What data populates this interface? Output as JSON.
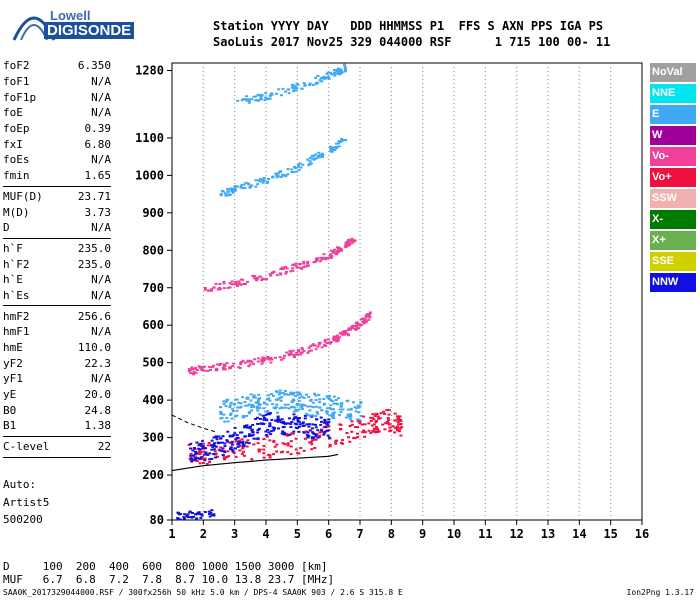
{
  "logo": {
    "line1": "Lowell",
    "line2": "DIGISONDE"
  },
  "header": {
    "line1": "Station YYYY DAY   DDD HHMMSS P1  FFS S AXN PPS IGA PS",
    "line2": "SaoLuis 2017 Nov25 329 044000 RSF      1 715 100 00- 11"
  },
  "params_group1": [
    {
      "name": "foF2",
      "value": "6.350"
    },
    {
      "name": "foF1",
      "value": "N/A"
    },
    {
      "name": "foF1p",
      "value": "N/A"
    },
    {
      "name": "foE",
      "value": "N/A"
    },
    {
      "name": "foEp",
      "value": "0.39"
    },
    {
      "name": "fxI",
      "value": "6.80"
    },
    {
      "name": "foEs",
      "value": "N/A"
    },
    {
      "name": "fmin",
      "value": "1.65"
    }
  ],
  "params_group2": [
    {
      "name": "MUF(D)",
      "value": "23.71"
    },
    {
      "name": "M(D)",
      "value": "3.73"
    },
    {
      "name": "D",
      "value": "N/A"
    }
  ],
  "params_group3": [
    {
      "name": "h`F",
      "value": "235.0"
    },
    {
      "name": "h`F2",
      "value": "235.0"
    },
    {
      "name": "h`E",
      "value": "N/A"
    },
    {
      "name": "h`Es",
      "value": "N/A"
    }
  ],
  "params_group4": [
    {
      "name": "hmF2",
      "value": "256.6"
    },
    {
      "name": "hmF1",
      "value": "N/A"
    },
    {
      "name": "hmE",
      "value": "110.0"
    },
    {
      "name": "yF2",
      "value": "22.3"
    },
    {
      "name": "yF1",
      "value": "N/A"
    },
    {
      "name": "yE",
      "value": "20.0"
    },
    {
      "name": "B0",
      "value": "24.8"
    },
    {
      "name": "B1",
      "value": "1.38"
    }
  ],
  "clevel": {
    "name": "C-level",
    "value": "22"
  },
  "auto": {
    "label": "Auto:",
    "artist": "Artist5",
    "version": "500200"
  },
  "dmuf": {
    "line1": "D     100  200  400  600  800 1000 1500 3000 [km]",
    "line2": "MUF   6.7  6.8  7.2  7.8  8.7 10.0 13.8 23.7 [MHz]"
  },
  "footer": {
    "file": "SAA0K_2017329044000.RSF / 300fx256h 50 kHz 5.0 km / DPS-4 SAA0K 903 / 2.6 S 315.8 E",
    "version": "Ion2Png 1.3.17"
  },
  "legend": [
    {
      "label": "NoVal",
      "color": "#a0a0a0"
    },
    {
      "label": "NNE",
      "color": "#00e5f0"
    },
    {
      "label": "E",
      "color": "#3fa9f5"
    },
    {
      "label": "W",
      "color": "#a0009a"
    },
    {
      "label": "Vo-",
      "color": "#f0409a"
    },
    {
      "label": "Vo+",
      "color": "#f01040"
    },
    {
      "label": "SSW",
      "color": "#f0b0b0"
    },
    {
      "label": "X-",
      "color": "#007a00"
    },
    {
      "label": "X+",
      "color": "#6aaf50"
    },
    {
      "label": "SSE",
      "color": "#d0d000"
    },
    {
      "label": "NNW",
      "color": "#1010e0"
    }
  ],
  "chart_data": {
    "type": "scatter",
    "title": "",
    "xlabel": "",
    "ylabel": "",
    "xlim": [
      1,
      16
    ],
    "ylim": [
      80,
      1300
    ],
    "x_ticks": [
      1,
      2,
      3,
      4,
      5,
      6,
      7,
      8,
      9,
      10,
      11,
      12,
      13,
      14,
      15,
      16
    ],
    "y_ticks": [
      80,
      200,
      300,
      400,
      500,
      600,
      700,
      800,
      900,
      1000,
      1100,
      1280
    ],
    "grid": "vertical dotted at integer frequencies",
    "traces": [
      {
        "name": "F trace low",
        "color": "#f01040",
        "x": [
          1.5,
          2,
          3,
          4,
          5,
          6,
          7,
          7.5,
          8,
          8.3
        ],
        "y": [
          258,
          262,
          268,
          278,
          290,
          305,
          330,
          345,
          350,
          325
        ]
      },
      {
        "name": "NNW cluster",
        "color": "#1010e0",
        "x": [
          1.5,
          2,
          2.5,
          3,
          3.5,
          4,
          4.5,
          5,
          5.5,
          6
        ],
        "y": [
          265,
          270,
          280,
          300,
          320,
          340,
          340,
          335,
          330,
          330
        ]
      },
      {
        "name": "E cluster",
        "color": "#3fa9f5",
        "x": [
          2.5,
          3,
          3.5,
          4,
          4.5,
          5,
          5.5,
          6,
          6.5,
          7
        ],
        "y": [
          370,
          380,
          390,
          395,
          400,
          395,
          390,
          385,
          380,
          370
        ]
      },
      {
        "name": "2nd hop",
        "color": "#f0409a",
        "x": [
          1.5,
          2,
          3,
          4,
          5,
          6,
          6.5,
          7,
          7.3
        ],
        "y": [
          480,
          485,
          495,
          510,
          530,
          560,
          580,
          610,
          630
        ]
      },
      {
        "name": "3rd hop",
        "color": "#f0409a",
        "x": [
          2,
          3,
          4,
          5,
          6,
          6.5,
          6.8
        ],
        "y": [
          700,
          715,
          735,
          760,
          790,
          815,
          835
        ]
      },
      {
        "name": "4th hop",
        "color": "#3fa9f5",
        "x": [
          2.5,
          3,
          4,
          5,
          6,
          6.5
        ],
        "y": [
          950,
          965,
          990,
          1025,
          1070,
          1100
        ]
      },
      {
        "name": "5th hop",
        "color": "#3fa9f5",
        "x": [
          3,
          4,
          5,
          6,
          6.5
        ],
        "y": [
          1200,
          1215,
          1240,
          1270,
          1290
        ]
      },
      {
        "name": "Es low",
        "color": "#1010e0",
        "x": [
          1.1,
          1.4,
          1.7,
          2.0,
          2.3
        ],
        "y": [
          92,
          95,
          96,
          98,
          100
        ]
      }
    ],
    "profile_line": {
      "x": [
        1,
        2,
        3,
        4,
        5,
        6,
        6.3
      ],
      "y": [
        212,
        225,
        233,
        240,
        245,
        250,
        255
      ]
    },
    "dashed_line": {
      "x": [
        1,
        1.5,
        2,
        2.4
      ],
      "y": [
        360,
        340,
        325,
        315
      ]
    }
  }
}
